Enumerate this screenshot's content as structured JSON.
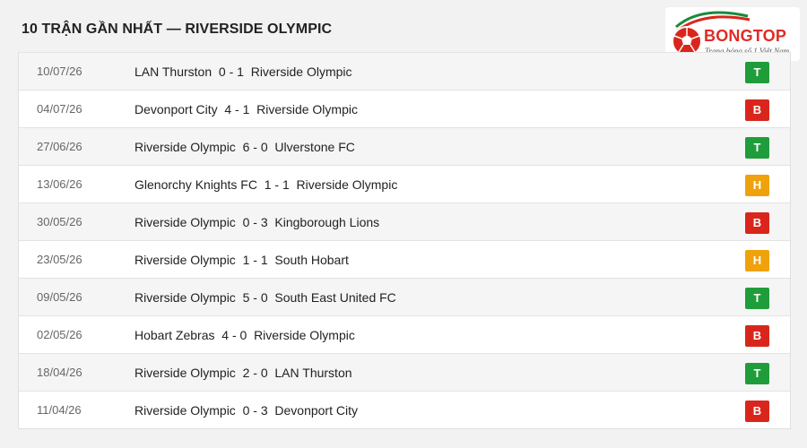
{
  "header": {
    "title": "10 TRẬN GẦN NHẤT — RIVERSIDE OLYMPIC"
  },
  "logo": {
    "brand": "BONGTOP",
    "tagline": "Trang bóng số 1 Việt Nam",
    "icon": "soccer-ball-icon"
  },
  "result_colors": {
    "T": "#1f9d3a",
    "B": "#d9261c",
    "H": "#f0a20c"
  },
  "matches": [
    {
      "date": "10/07/26",
      "home": "LAN Thurston",
      "score": "0 - 1",
      "away": "Riverside Olympic",
      "result": "T"
    },
    {
      "date": "04/07/26",
      "home": "Devonport City",
      "score": "4 - 1",
      "away": "Riverside Olympic",
      "result": "B"
    },
    {
      "date": "27/06/26",
      "home": "Riverside Olympic",
      "score": "6 - 0",
      "away": "Ulverstone FC",
      "result": "T"
    },
    {
      "date": "13/06/26",
      "home": "Glenorchy Knights FC",
      "score": "1 - 1",
      "away": "Riverside Olympic",
      "result": "H"
    },
    {
      "date": "30/05/26",
      "home": "Riverside Olympic",
      "score": "0 - 3",
      "away": "Kingborough Lions",
      "result": "B"
    },
    {
      "date": "23/05/26",
      "home": "Riverside Olympic",
      "score": "1 - 1",
      "away": "South Hobart",
      "result": "H"
    },
    {
      "date": "09/05/26",
      "home": "Riverside Olympic",
      "score": "5 - 0",
      "away": "South East United FC",
      "result": "T"
    },
    {
      "date": "02/05/26",
      "home": "Hobart Zebras",
      "score": "4 - 0",
      "away": "Riverside Olympic",
      "result": "B"
    },
    {
      "date": "18/04/26",
      "home": "Riverside Olympic",
      "score": "2 - 0",
      "away": "LAN Thurston",
      "result": "T"
    },
    {
      "date": "11/04/26",
      "home": "Riverside Olympic",
      "score": "0 - 3",
      "away": "Devonport City",
      "result": "B"
    }
  ]
}
